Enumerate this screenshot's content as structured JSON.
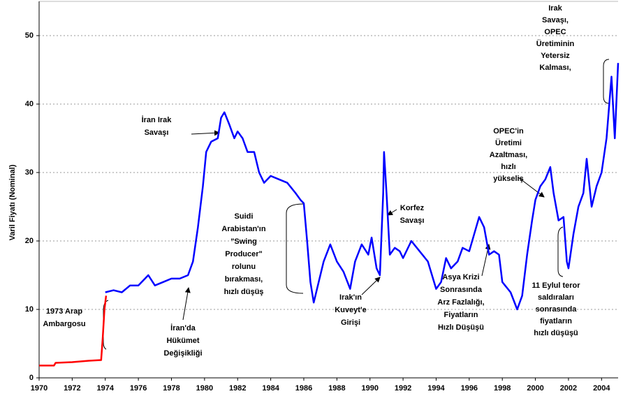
{
  "chart_data": {
    "type": "line",
    "y_label": "Varil Fiyatı (Nominal)",
    "xlim": [
      1970,
      2005
    ],
    "ylim": [
      0,
      55
    ],
    "xticks": [
      1970,
      1972,
      1974,
      1976,
      1978,
      1980,
      1982,
      1984,
      1986,
      1988,
      1990,
      1992,
      1994,
      1996,
      1998,
      2000,
      2002,
      2004
    ],
    "yticks": [
      0,
      10,
      20,
      30,
      40,
      50
    ],
    "grid": true,
    "series": [
      {
        "color": "#ff0000",
        "x": [
          1970,
          1970.9,
          1971,
          1972,
          1973,
          1973.75,
          1973.85,
          1973.95,
          1974.05
        ],
        "values": [
          1.8,
          1.8,
          2.2,
          2.3,
          2.5,
          2.6,
          6,
          10,
          12
        ]
      },
      {
        "color": "#0000ff",
        "x": [
          1974,
          1974.5,
          1975,
          1975.5,
          1976,
          1976.6,
          1977,
          1977.5,
          1978,
          1978.5,
          1979,
          1979.3,
          1979.6,
          1979.9,
          1980.1,
          1980.4,
          1980.8,
          1981,
          1981.2,
          1981.5,
          1981.8,
          1982,
          1982.3,
          1982.6,
          1983,
          1983.3,
          1983.6,
          1984,
          1984.5,
          1985,
          1985.5,
          1985.8,
          1986,
          1986.2,
          1986.4,
          1986.6,
          1986.9,
          1987.2,
          1987.6,
          1988,
          1988.4,
          1988.8,
          1989.1,
          1989.5,
          1989.9,
          1990.1,
          1990.4,
          1990.6,
          1990.8,
          1990.85,
          1991,
          1991.2,
          1991.5,
          1991.8,
          1992,
          1992.5,
          1993,
          1993.5,
          1994,
          1994.3,
          1994.6,
          1994.9,
          1995.3,
          1995.6,
          1996,
          1996.3,
          1996.6,
          1996.9,
          1997.2,
          1997.5,
          1997.8,
          1998,
          1998.5,
          1998.9,
          1999.2,
          1999.5,
          1999.8,
          2000,
          2000.3,
          2000.6,
          2000.9,
          2001.1,
          2001.4,
          2001.7,
          2001.9,
          2002,
          2002.3,
          2002.6,
          2002.9,
          2003.1,
          2003.4,
          2003.7,
          2004,
          2004.3,
          2004.6,
          2004.8,
          2005
        ],
        "values": [
          12.5,
          12.8,
          12.5,
          13.5,
          13.5,
          15,
          13.5,
          14,
          14.5,
          14.5,
          15,
          17,
          22,
          28,
          33,
          34.5,
          35,
          38,
          38.8,
          37,
          35,
          36,
          35,
          33,
          33,
          30,
          28.5,
          29.5,
          29,
          28.5,
          27,
          26,
          25.5,
          20,
          14,
          11,
          14,
          17,
          19.5,
          17,
          15.5,
          13,
          17,
          19.5,
          18,
          20.5,
          16,
          15,
          27,
          33,
          27,
          18,
          19,
          18.5,
          17.5,
          20,
          18.5,
          17,
          13,
          14,
          17.5,
          16,
          17,
          19,
          18.5,
          21,
          23.5,
          22,
          18,
          18.5,
          18,
          14,
          12.5,
          10,
          12,
          18,
          23,
          26,
          28,
          29,
          30.8,
          27,
          23,
          23.5,
          17,
          16,
          21,
          25,
          27,
          32,
          25,
          28,
          30,
          35,
          44,
          35,
          46
        ]
      }
    ],
    "annotations": [
      {
        "lines": [
          "1973 Arap",
          "Ambargosu"
        ]
      },
      {
        "lines": [
          "İran'da",
          "Hükümet",
          "Değişikliği"
        ]
      },
      {
        "lines": [
          "İran Irak",
          "Savaşı"
        ]
      },
      {
        "lines": [
          "Suidi",
          "Arabistan'ın",
          "\"Swing",
          "Producer\"",
          "rolunu",
          "bırakması,",
          "hızlı düşüş"
        ]
      },
      {
        "lines": [
          "Irak'ın",
          "Kuveyt'e",
          "Girişi"
        ]
      },
      {
        "lines": [
          "Korfez",
          "Savaşı"
        ]
      },
      {
        "lines": [
          "Asya Krizi",
          "Sonrasında",
          "Arz Fazlalığı,",
          "Fiyatların",
          "Hızlı Düşüşü"
        ]
      },
      {
        "lines": [
          "OPEC'in",
          "Üretimi",
          "Azaltması,",
          "hızlı",
          "yükseliş"
        ]
      },
      {
        "lines": [
          "11 Eylul teror",
          "saldıraları",
          "sonrasında",
          "fiyatların",
          "hızlı düşüşü"
        ]
      },
      {
        "lines": [
          "Irak",
          "Savaşı,",
          "OPEC",
          "Üretiminin",
          "Yetersiz",
          "Kalması,"
        ]
      }
    ]
  }
}
